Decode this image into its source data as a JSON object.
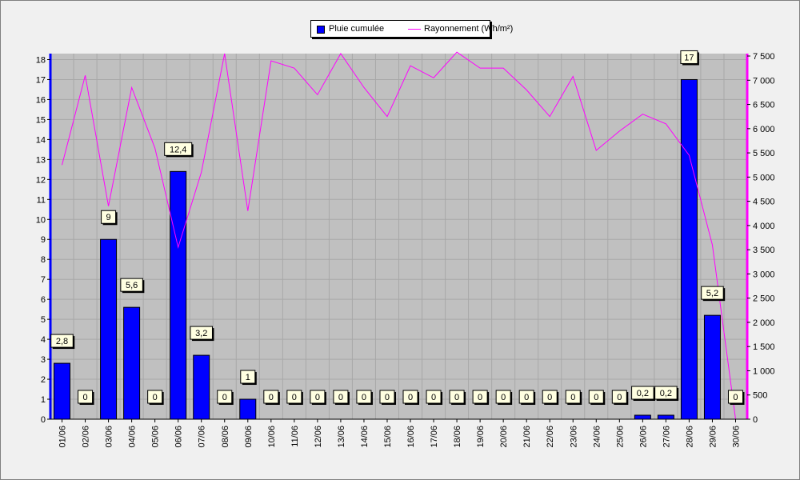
{
  "chart_data": {
    "type": "bar",
    "categories": [
      "01/06",
      "02/06",
      "03/06",
      "04/06",
      "05/06",
      "06/06",
      "07/06",
      "08/06",
      "09/06",
      "10/06",
      "11/06",
      "12/06",
      "13/06",
      "14/06",
      "15/06",
      "16/06",
      "17/06",
      "18/06",
      "19/06",
      "20/06",
      "21/06",
      "22/06",
      "23/06",
      "24/06",
      "25/06",
      "26/06",
      "27/06",
      "28/06",
      "29/06",
      "30/06"
    ],
    "series": [
      {
        "name": "Pluie cumulée",
        "type": "bar",
        "axis": "left",
        "color": "#0000ff",
        "values": [
          2.8,
          0,
          9,
          5.6,
          0,
          12.4,
          3.2,
          0,
          1,
          0,
          0,
          0,
          0,
          0,
          0,
          0,
          0,
          0,
          0,
          0,
          0,
          0,
          0,
          0,
          0,
          0.2,
          0.2,
          17,
          5.2,
          0
        ],
        "labels": [
          "2,8",
          "0",
          "9",
          "5,6",
          "0",
          "12,4",
          "3,2",
          "0",
          "1",
          "0",
          "0",
          "0",
          "0",
          "0",
          "0",
          "0",
          "0",
          "0",
          "0",
          "0",
          "0",
          "0",
          "0",
          "0",
          "0",
          "0,2",
          "0,2",
          "17",
          "5,2",
          "0"
        ]
      },
      {
        "name": "Rayonnement (Wh/m²)",
        "type": "line",
        "axis": "right",
        "color": "#ff00ff",
        "values": [
          5250,
          7100,
          4400,
          6850,
          5600,
          3550,
          5100,
          7550,
          4300,
          7400,
          7250,
          6700,
          7550,
          6850,
          6250,
          7300,
          7050,
          7580,
          7250,
          7250,
          6800,
          6250,
          7080,
          5550,
          5950,
          6300,
          6100,
          5450,
          3600,
          0
        ]
      }
    ],
    "y_left": {
      "ylim": [
        0,
        18.3
      ],
      "ticks": [
        "0",
        "1",
        "2",
        "3",
        "4",
        "5",
        "6",
        "7",
        "8",
        "9",
        "10",
        "11",
        "12",
        "13",
        "14",
        "15",
        "16",
        "17",
        "18"
      ]
    },
    "y_right": {
      "ylim": [
        0,
        7550
      ],
      "ticks": [
        "0",
        "500",
        "1 000",
        "1 500",
        "2 000",
        "2 500",
        "3 000",
        "3 500",
        "4 000",
        "4 500",
        "5 000",
        "5 500",
        "6 000",
        "6 500",
        "7 000",
        "7 500"
      ]
    },
    "grid": true,
    "legend_position": "top-center"
  }
}
